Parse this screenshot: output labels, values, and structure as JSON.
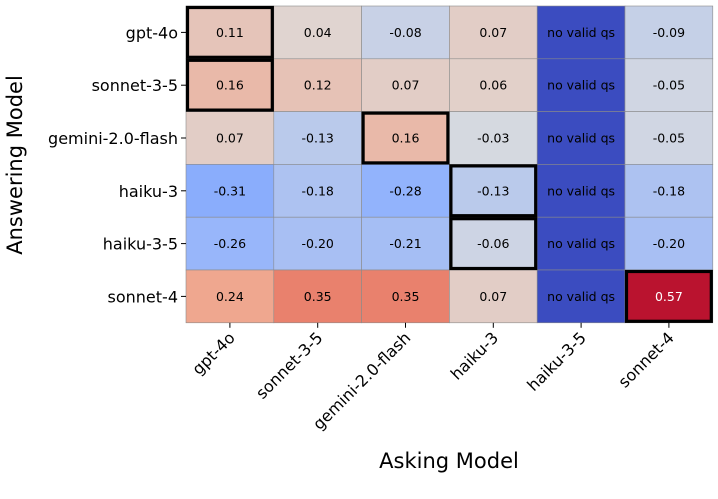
{
  "chart_data": {
    "type": "heatmap",
    "title": "",
    "xlabel": "Asking Model",
    "ylabel": "Answering Model",
    "x_categories": [
      "gpt-4o",
      "sonnet-3-5",
      "gemini-2.0-flash",
      "haiku-3",
      "haiku-3-5",
      "sonnet-4"
    ],
    "y_categories": [
      "gpt-4o",
      "sonnet-3-5",
      "gemini-2.0-flash",
      "haiku-3",
      "haiku-3-5",
      "sonnet-4"
    ],
    "values": [
      [
        0.11,
        0.04,
        -0.08,
        0.07,
        null,
        -0.09
      ],
      [
        0.16,
        0.12,
        0.07,
        0.06,
        null,
        -0.05
      ],
      [
        0.07,
        -0.13,
        0.16,
        -0.03,
        null,
        -0.05
      ],
      [
        -0.31,
        -0.18,
        -0.28,
        -0.13,
        null,
        -0.18
      ],
      [
        -0.26,
        -0.2,
        -0.21,
        -0.06,
        null,
        -0.2
      ],
      [
        0.24,
        0.35,
        0.35,
        0.07,
        null,
        0.57
      ]
    ],
    "cell_labels": [
      [
        "0.11",
        "0.04",
        "-0.08",
        "0.07",
        "no valid qs",
        "-0.09"
      ],
      [
        "0.16",
        "0.12",
        "0.07",
        "0.06",
        "no valid qs",
        "-0.05"
      ],
      [
        "0.07",
        "-0.13",
        "0.16",
        "-0.03",
        "no valid qs",
        "-0.05"
      ],
      [
        "-0.31",
        "-0.18",
        "-0.28",
        "-0.13",
        "no valid qs",
        "-0.18"
      ],
      [
        "-0.26",
        "-0.20",
        "-0.21",
        "-0.06",
        "no valid qs",
        "-0.20"
      ],
      [
        "0.24",
        "0.35",
        "0.35",
        "0.07",
        "no valid qs",
        "0.57"
      ]
    ],
    "missing_label": "no valid qs",
    "highlighted_cells": [
      [
        0,
        0
      ],
      [
        1,
        0
      ],
      [
        2,
        2
      ],
      [
        3,
        3
      ],
      [
        4,
        3
      ],
      [
        5,
        5
      ]
    ],
    "colormap": "coolwarm",
    "vmin": -0.6,
    "vmax": 0.6,
    "missing_color": "#3b4cc0",
    "colorbar": false
  }
}
